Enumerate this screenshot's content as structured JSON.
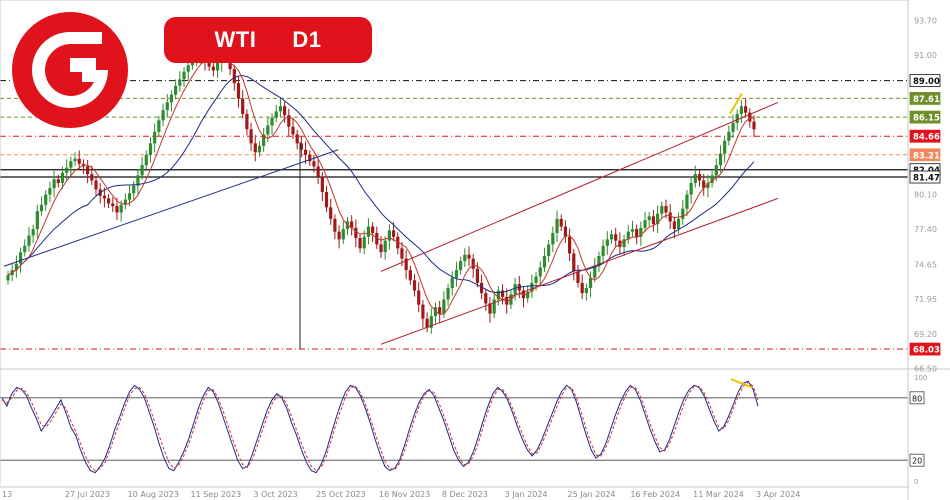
{
  "header": {
    "symbol": "WTI",
    "timeframe": "D1",
    "logo_icon": "g-brand-logo-icon",
    "brand_color": "#e0131c"
  },
  "chart_data": [
    {
      "type": "candlestick",
      "ylim": [
        66.55,
        95.3
      ],
      "y_ticks": [
        "93.70",
        "91.00",
        "89.00",
        "87.61",
        "86.15",
        "84.66",
        "83.21",
        "82.04",
        "81.47",
        "80.10",
        "77.40",
        "74.65",
        "71.95",
        "69.20",
        "68.03",
        "66.50"
      ],
      "x_ticks": [
        "13",
        "27 Jul 2023",
        "10 Aug 2023",
        "11 Sep 2023",
        "3 Oct 2023",
        "25 Oct 2023",
        "16 Nov 2023",
        "8 Dec 2023",
        "3 Jan 2024",
        "25 Jan 2024",
        "16 Feb 2024",
        "11 Mar 2024",
        "3 Apr 2024"
      ],
      "price_levels": [
        {
          "label": "89.00",
          "value": 89.0,
          "color": "#111111",
          "style": "dash-dot"
        },
        {
          "label": "87.61",
          "value": 87.61,
          "color": "#6f8f2a",
          "style": "dashed"
        },
        {
          "label": "86.15",
          "value": 86.15,
          "color": "#6f8f2a",
          "style": "dashed"
        },
        {
          "label": "84.66",
          "value": 84.66,
          "color": "#e0131c",
          "style": "dash-dot"
        },
        {
          "label": "83.21",
          "value": 83.21,
          "color": "#f08a5d",
          "style": "dashed"
        },
        {
          "label": "82.04",
          "value": 82.04,
          "color": "#111111",
          "style": "solid"
        },
        {
          "label": "81.47",
          "value": 81.47,
          "color": "#111111",
          "style": "solid"
        },
        {
          "label": "68.03",
          "value": 68.03,
          "color": "#e0131c",
          "style": "dash-dot"
        }
      ],
      "closes": [
        73.8,
        74.2,
        74.7,
        75.6,
        76.1,
        76.9,
        77.4,
        78.8,
        79.3,
        80.1,
        80.6,
        81.3,
        81.0,
        81.8,
        82.2,
        82.7,
        82.9,
        82.5,
        82.3,
        81.7,
        81.2,
        80.5,
        80.0,
        79.8,
        79.4,
        79.2,
        78.7,
        79.3,
        79.7,
        80.2,
        80.8,
        81.6,
        82.4,
        83.2,
        84.1,
        85.0,
        85.9,
        86.7,
        87.3,
        87.9,
        88.6,
        89.1,
        89.7,
        90.2,
        90.6,
        90.9,
        91.2,
        90.5,
        90.1,
        89.8,
        90.4,
        91.0,
        91.1,
        89.9,
        88.8,
        87.6,
        86.4,
        85.2,
        84.1,
        83.4,
        83.9,
        84.8,
        85.5,
        86.1,
        86.6,
        87.0,
        86.3,
        85.4,
        84.8,
        84.1,
        83.6,
        83.2,
        82.7,
        82.3,
        81.5,
        80.3,
        79.1,
        78.2,
        77.2,
        76.6,
        77.4,
        78.0,
        77.5,
        76.7,
        75.9,
        76.8,
        77.6,
        77.1,
        76.2,
        75.6,
        76.5,
        77.3,
        76.8,
        75.9,
        75.1,
        74.2,
        73.4,
        72.6,
        71.5,
        70.4,
        69.7,
        70.6,
        71.3,
        70.8,
        71.9,
        72.8,
        73.6,
        74.2,
        74.9,
        75.4,
        75.1,
        74.3,
        73.2,
        72.4,
        71.6,
        70.8,
        71.9,
        72.6,
        72.1,
        71.5,
        72.3,
        73.1,
        72.6,
        72.0,
        72.5,
        73.2,
        73.7,
        74.4,
        75.3,
        76.2,
        77.1,
        78.2,
        77.6,
        76.8,
        75.5,
        74.1,
        73.2,
        72.4,
        72.8,
        73.6,
        74.5,
        75.3,
        76.1,
        76.6,
        77.0,
        76.5,
        76.0,
        76.6,
        77.2,
        77.4,
        76.8,
        77.5,
        78.1,
        78.4,
        77.8,
        78.6,
        79.2,
        78.7,
        78.0,
        77.4,
        78.2,
        79.0,
        80.1,
        81.0,
        81.7,
        81.2,
        80.6,
        81.0,
        81.6,
        82.4,
        83.3,
        84.3,
        85.0,
        85.7,
        86.4,
        87.0,
        86.5,
        85.8,
        85.2
      ],
      "close_x_range": [
        "13",
        "3 Apr 2024"
      ],
      "trendlines": [
        {
          "style": "solid",
          "color": "#1a2a8a",
          "from": 74.5,
          "to": 83.6,
          "x_from": "13",
          "x_to": "25 Oct 2023"
        },
        {
          "style": "solid",
          "color": "#b21d2a",
          "from": 74.1,
          "to": 87.3,
          "x_from": "16 Nov 2023",
          "x_to": "3 Apr 2024"
        },
        {
          "style": "solid",
          "color": "#b21d2a",
          "from": 68.4,
          "to": 79.8,
          "x_from": "16 Nov 2023",
          "x_to": "3 Apr 2024"
        }
      ]
    },
    {
      "type": "line",
      "ylim": [
        0,
        100
      ],
      "y_ticks": [
        "100",
        "80",
        "20",
        "0"
      ],
      "levels": [
        80,
        20
      ],
      "series": [
        {
          "color": "#1a2a8a",
          "style": "solid",
          "values": [
            80,
            72,
            84,
            90,
            88,
            82,
            70,
            60,
            48,
            55,
            62,
            70,
            78,
            66,
            52,
            44,
            30,
            18,
            10,
            8,
            14,
            22,
            35,
            50,
            62,
            75,
            86,
            92,
            88,
            80,
            66,
            52,
            36,
            22,
            12,
            10,
            18,
            28,
            40,
            55,
            70,
            82,
            90,
            86,
            76,
            62,
            48,
            34,
            20,
            12,
            14,
            26,
            40,
            54,
            68,
            78,
            84,
            80,
            70,
            56,
            44,
            30,
            18,
            10,
            8,
            16,
            28,
            44,
            60,
            74,
            86,
            92,
            90,
            82,
            70,
            56,
            40,
            26,
            14,
            10,
            12,
            20,
            34,
            50,
            64,
            76,
            84,
            88,
            82,
            70,
            58,
            44,
            30,
            20,
            14,
            18,
            28,
            42,
            58,
            72,
            84,
            90,
            86,
            78,
            66,
            52,
            40,
            30,
            24,
            30,
            40,
            52,
            64,
            76,
            86,
            92,
            88,
            76,
            60,
            44,
            30,
            22,
            26,
            36,
            50,
            64,
            76,
            86,
            92,
            88,
            78,
            64,
            50,
            38,
            28,
            30,
            40,
            54,
            68,
            80,
            88,
            92,
            90,
            82,
            70,
            58,
            48,
            52,
            62,
            74,
            86,
            94,
            96,
            88,
            72
          ]
        },
        {
          "color": "#d23131",
          "style": "dashed",
          "values": [
            78,
            75,
            80,
            87,
            89,
            85,
            76,
            65,
            54,
            52,
            58,
            66,
            74,
            70,
            58,
            48,
            36,
            24,
            14,
            10,
            12,
            18,
            30,
            44,
            57,
            70,
            82,
            89,
            90,
            84,
            72,
            58,
            44,
            30,
            18,
            12,
            15,
            24,
            35,
            49,
            64,
            77,
            87,
            88,
            80,
            68,
            54,
            40,
            27,
            16,
            13,
            21,
            34,
            48,
            62,
            74,
            82,
            82,
            74,
            62,
            49,
            36,
            24,
            14,
            10,
            13,
            23,
            38,
            54,
            68,
            81,
            90,
            91,
            85,
            74,
            61,
            46,
            32,
            19,
            12,
            11,
            17,
            29,
            44,
            59,
            72,
            82,
            87,
            85,
            75,
            63,
            50,
            36,
            24,
            16,
            16,
            24,
            36,
            52,
            67,
            80,
            88,
            88,
            81,
            70,
            57,
            45,
            34,
            26,
            27,
            36,
            47,
            59,
            71,
            82,
            90,
            90,
            80,
            66,
            50,
            36,
            25,
            24,
            32,
            44,
            58,
            71,
            82,
            90,
            90,
            82,
            69,
            55,
            43,
            32,
            29,
            36,
            48,
            62,
            75,
            85,
            91,
            91,
            85,
            75,
            63,
            52,
            50,
            58,
            70,
            82,
            91,
            95,
            91,
            78
          ]
        }
      ]
    }
  ]
}
